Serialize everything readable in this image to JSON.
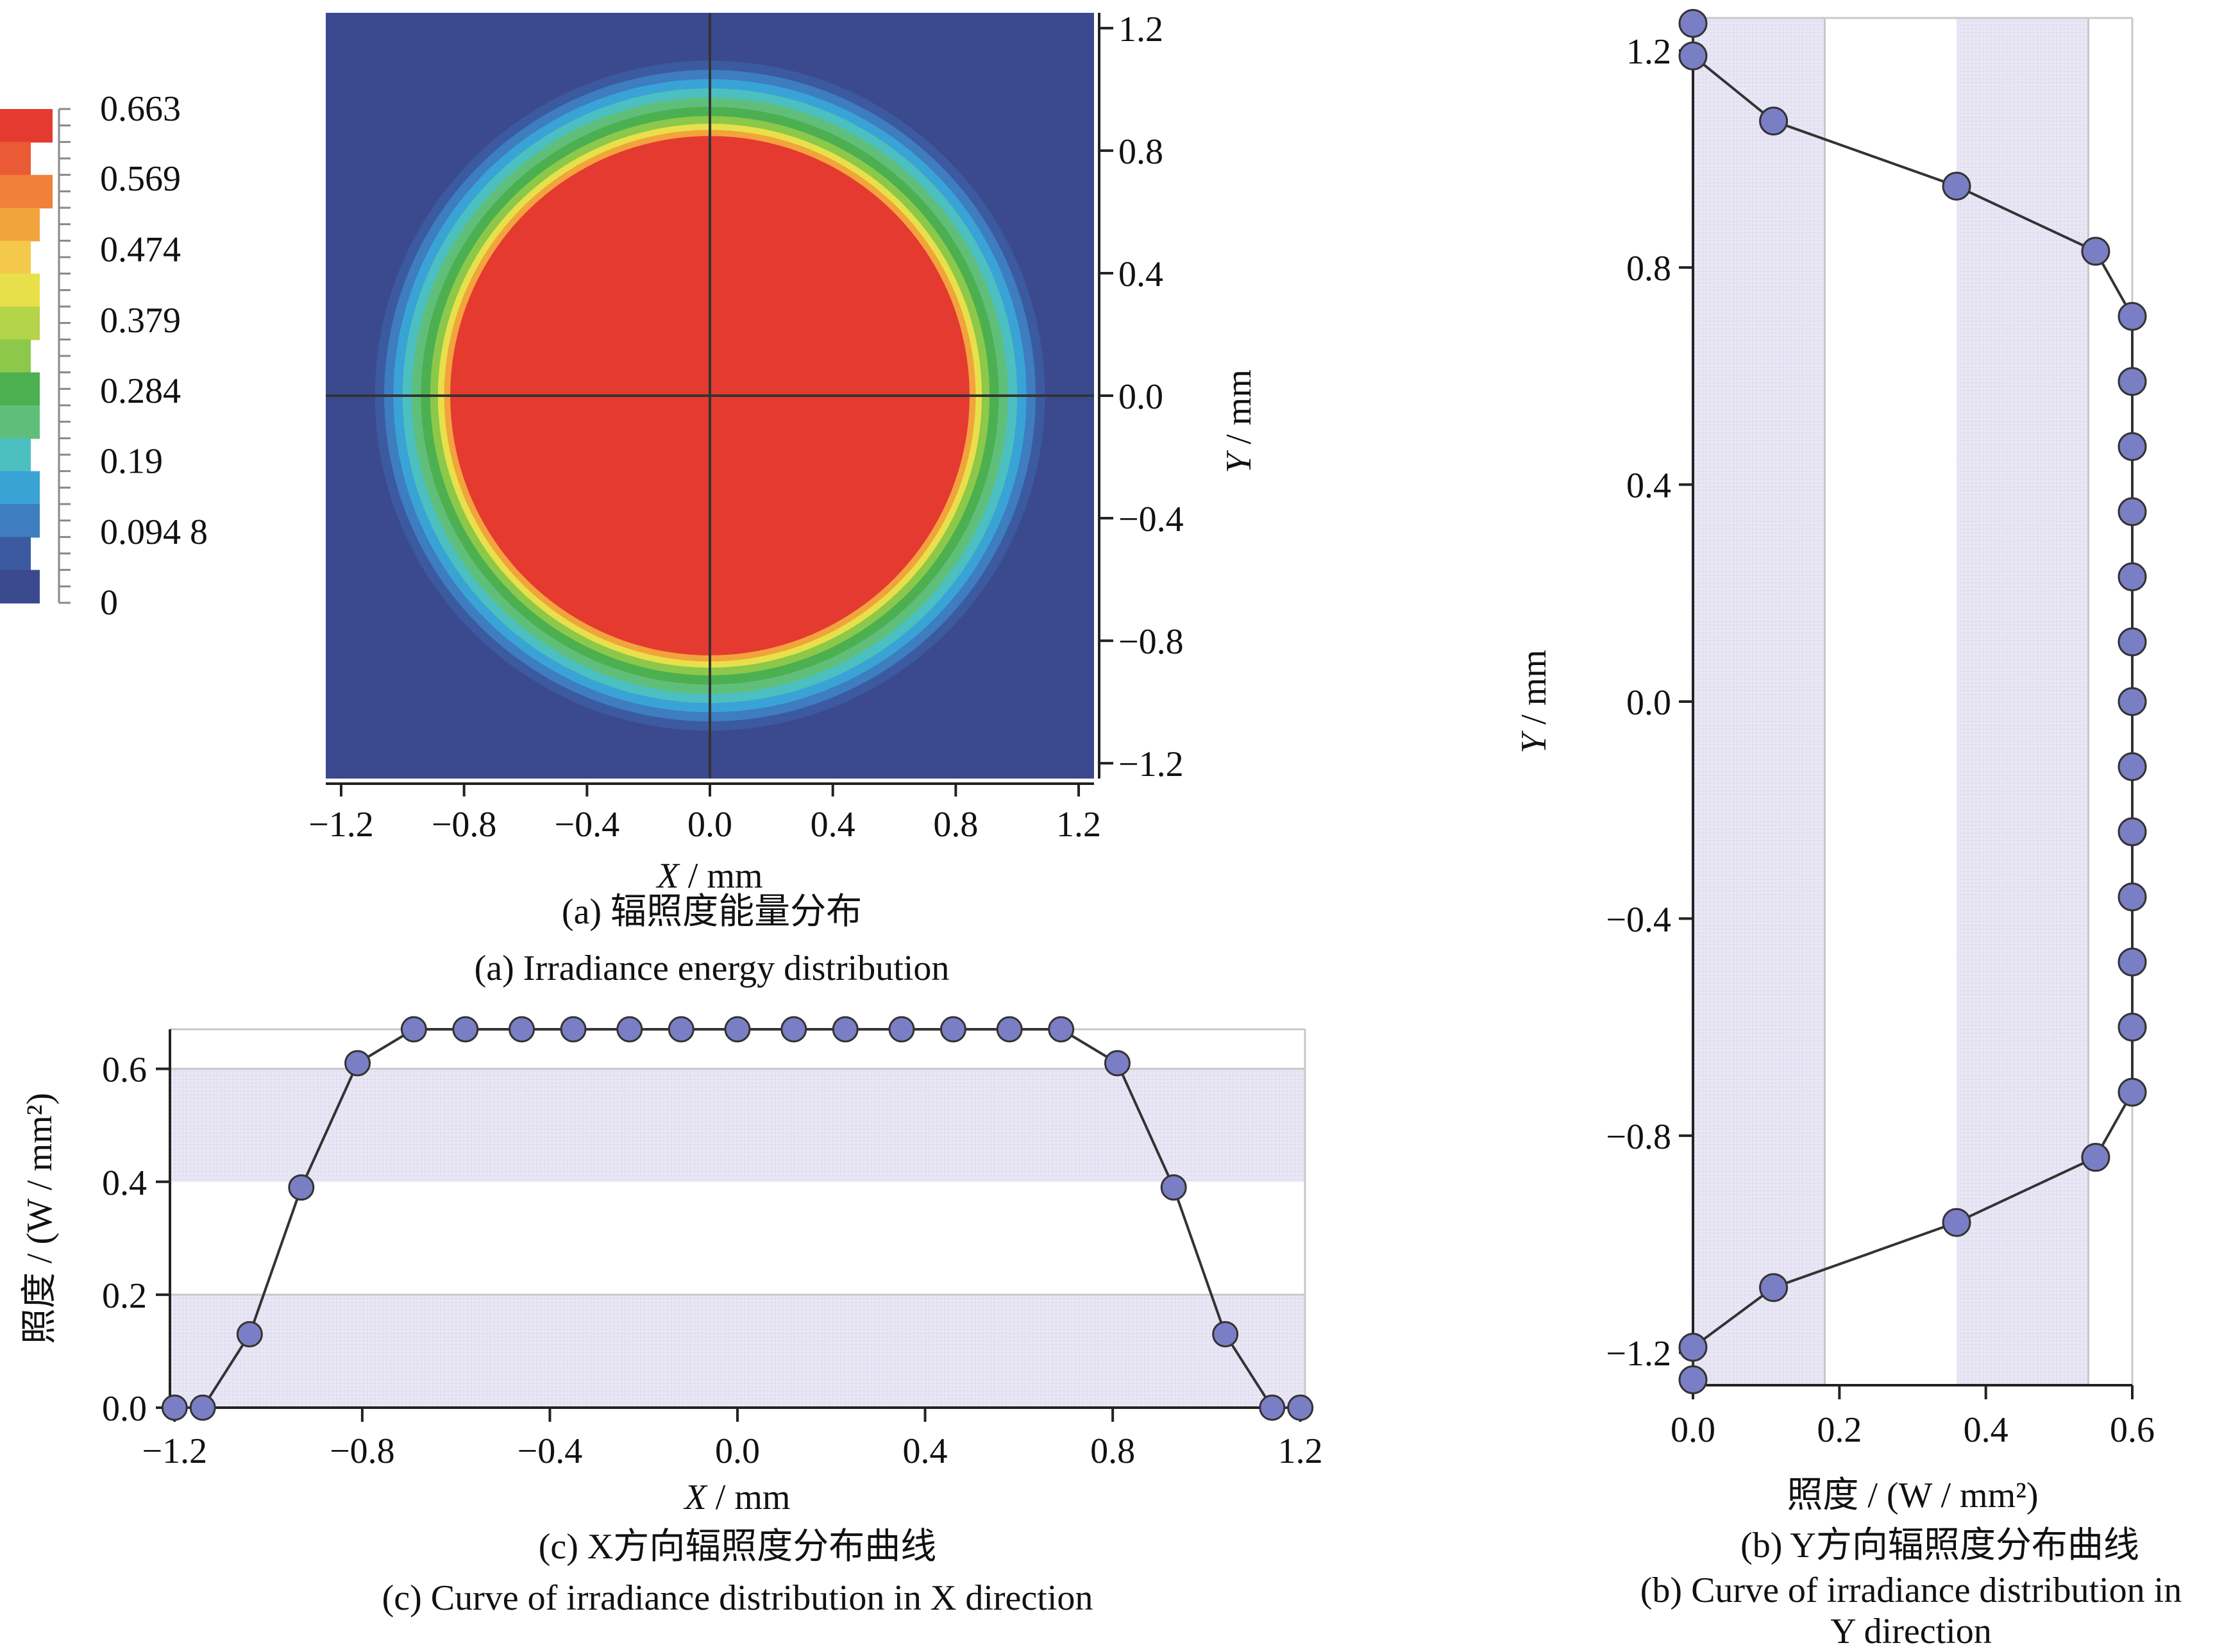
{
  "chart_data": [
    {
      "id": "a",
      "type": "heatmap",
      "caption_cn": "(a) 辐照度能量分布",
      "caption_en": "(a) Irradiance energy distribution",
      "xlabel": "X / mm",
      "ylabel": "Y / mm",
      "xlim": [
        -1.25,
        1.25
      ],
      "ylim": [
        -1.25,
        1.25
      ],
      "x_ticks": [
        "−1.2",
        "−0.8",
        "−0.4",
        "0.0",
        "0.4",
        "0.8",
        "1.2"
      ],
      "y_ticks": [
        "1.2",
        "0.8",
        "0.4",
        "0.0",
        "−0.4",
        "−0.8",
        "−1.2"
      ],
      "x_tick_values": [
        -1.2,
        -0.8,
        -0.4,
        0.0,
        0.4,
        0.8,
        1.2
      ],
      "y_tick_values": [
        1.2,
        0.8,
        0.4,
        0.0,
        -0.4,
        -0.8,
        -1.2
      ],
      "colorbar_labels": [
        "0.663",
        "0.569",
        "0.474",
        "0.379",
        "0.284",
        "0.19",
        "0.094 8",
        "0"
      ],
      "colorbar_values": [
        0.663,
        0.569,
        0.474,
        0.379,
        0.284,
        0.19,
        0.0948,
        0
      ],
      "colors": {
        "low": "#3b4a8f",
        "mid1": "#3aa3d6",
        "mid2": "#4cb050",
        "mid3": "#e8e04a",
        "high": "#e53a30"
      },
      "disk_radius_mm": 0.85,
      "edge_radius_mm": 1.08,
      "max_value": 0.663,
      "grid": false
    },
    {
      "id": "b",
      "type": "line",
      "caption_cn": "(b) Y方向辐照度分布曲线",
      "caption_en_1": "(b) Curve of irradiance distribution in",
      "caption_en_2": "Y direction",
      "xlabel": "照度 / (W / mm²)",
      "ylabel": "Y / mm",
      "xlim": [
        0,
        0.6
      ],
      "ylim": [
        -1.26,
        1.26
      ],
      "x_ticks": [
        "0.0",
        "0.2",
        "0.4",
        "0.6"
      ],
      "x_tick_values": [
        0.0,
        0.2,
        0.4,
        0.6
      ],
      "y_ticks": [
        "1.2",
        "0.8",
        "0.4",
        "0.0",
        "−0.4",
        "−0.8",
        "−1.2"
      ],
      "y_tick_values": [
        1.2,
        0.8,
        0.4,
        0.0,
        -0.4,
        -0.8,
        -1.2
      ],
      "shaded_bands": [
        [
          0,
          0.18
        ],
        [
          0.36,
          0.54
        ]
      ],
      "y": [
        1.25,
        1.19,
        1.07,
        0.95,
        0.83,
        0.71,
        0.59,
        0.47,
        0.35,
        0.23,
        0.11,
        0.0,
        -0.12,
        -0.24,
        -0.36,
        -0.48,
        -0.6,
        -0.72,
        -0.84,
        -0.96,
        -1.08,
        -1.19,
        -1.25
      ],
      "values": [
        0.0,
        0.0,
        0.11,
        0.36,
        0.55,
        0.6,
        0.6,
        0.6,
        0.6,
        0.6,
        0.6,
        0.6,
        0.6,
        0.6,
        0.6,
        0.6,
        0.6,
        0.6,
        0.55,
        0.36,
        0.11,
        0.0,
        0.0
      ],
      "marker_color": "#7a7ec4"
    },
    {
      "id": "c",
      "type": "line",
      "caption_cn": "(c) X方向辐照度分布曲线",
      "caption_en": "(c) Curve of irradiance distribution in X direction",
      "xlabel": "X / mm",
      "ylabel": "照度 / (W / mm²)",
      "xlim": [
        -1.21,
        1.21
      ],
      "ylim": [
        0,
        0.67
      ],
      "x_ticks": [
        "−1.2",
        "−0.8",
        "−0.4",
        "0.0",
        "0.4",
        "0.8",
        "1.2"
      ],
      "x_tick_values": [
        -1.2,
        -0.8,
        -0.4,
        0.0,
        0.4,
        0.8,
        1.2
      ],
      "y_ticks": [
        "0.0",
        "0.2",
        "0.4",
        "0.6"
      ],
      "y_tick_values": [
        0.0,
        0.2,
        0.4,
        0.6
      ],
      "shaded_bands": [
        [
          0,
          0.2
        ],
        [
          0.4,
          0.6
        ]
      ],
      "x": [
        -1.2,
        -1.14,
        -1.04,
        -0.93,
        -0.81,
        -0.69,
        -0.58,
        -0.46,
        -0.35,
        -0.23,
        -0.12,
        0.0,
        0.12,
        0.23,
        0.35,
        0.46,
        0.58,
        0.69,
        0.81,
        0.93,
        1.04,
        1.14,
        1.2
      ],
      "values": [
        0.0,
        0.0,
        0.13,
        0.39,
        0.61,
        0.67,
        0.67,
        0.67,
        0.67,
        0.67,
        0.67,
        0.67,
        0.67,
        0.67,
        0.67,
        0.67,
        0.67,
        0.67,
        0.61,
        0.39,
        0.13,
        0.0,
        0.0
      ],
      "marker_color": "#7a7ec4"
    }
  ]
}
